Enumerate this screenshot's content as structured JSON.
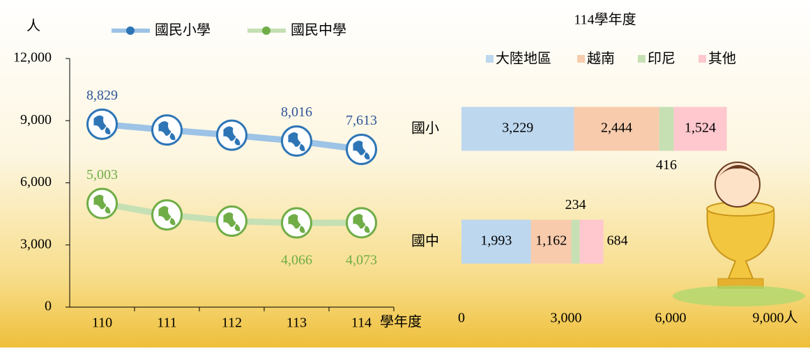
{
  "chart_data": [
    {
      "type": "line",
      "y_label": "人",
      "x_label": "學年度",
      "categories": [
        "110",
        "111",
        "112",
        "113",
        "114"
      ],
      "series": [
        {
          "name": "國民小學",
          "color": "#9dc3e6",
          "marker_color": "#2e75b6",
          "values": [
            8829,
            8550,
            8300,
            8016,
            7613
          ],
          "value_labels": [
            "8,829",
            null,
            null,
            "8,016",
            "7,613"
          ],
          "label_color": "#2f5597"
        },
        {
          "name": "國民中學",
          "color": "#c5e0b4",
          "marker_color": "#70ad47",
          "values": [
            5003,
            4450,
            4150,
            4066,
            4073
          ],
          "value_labels": [
            "5,003",
            null,
            null,
            "4,066",
            "4,073"
          ],
          "label_color": "#70ad47"
        }
      ],
      "ylim": [
        0,
        12000
      ],
      "yticks": [
        0,
        {
          "value": 3000,
          "label": "3,000"
        },
        {
          "value": 6000,
          "label": "6,000"
        },
        {
          "value": 9000,
          "label": "9,000"
        },
        {
          "value": 12000,
          "label": "12,000"
        }
      ]
    },
    {
      "type": "stacked_bar",
      "orientation": "horizontal",
      "title": "114學年度",
      "categories": [
        "國小",
        "國中"
      ],
      "series": [
        {
          "name": "大陸地區",
          "color": "#bdd7ee",
          "values": [
            3229,
            1993
          ],
          "value_labels": [
            "3,229",
            "1,993"
          ]
        },
        {
          "name": "越南",
          "color": "#f8cbad",
          "values": [
            2444,
            1162
          ],
          "value_labels": [
            "2,444",
            "1,162"
          ]
        },
        {
          "name": "印尼",
          "color": "#c6e0b4",
          "values": [
            416,
            234
          ],
          "value_labels": [
            "416",
            "234"
          ]
        },
        {
          "name": "其他",
          "color": "#ffc7ce",
          "values": [
            1524,
            684
          ],
          "value_labels": [
            "1,524",
            "684"
          ]
        }
      ],
      "xlim": [
        0,
        9000
      ],
      "xticks": [
        0,
        {
          "value": 3000,
          "label": "3,000"
        },
        {
          "value": 6000,
          "label": "6,000"
        },
        {
          "value": 9000,
          "label": "9,000人"
        }
      ]
    }
  ]
}
